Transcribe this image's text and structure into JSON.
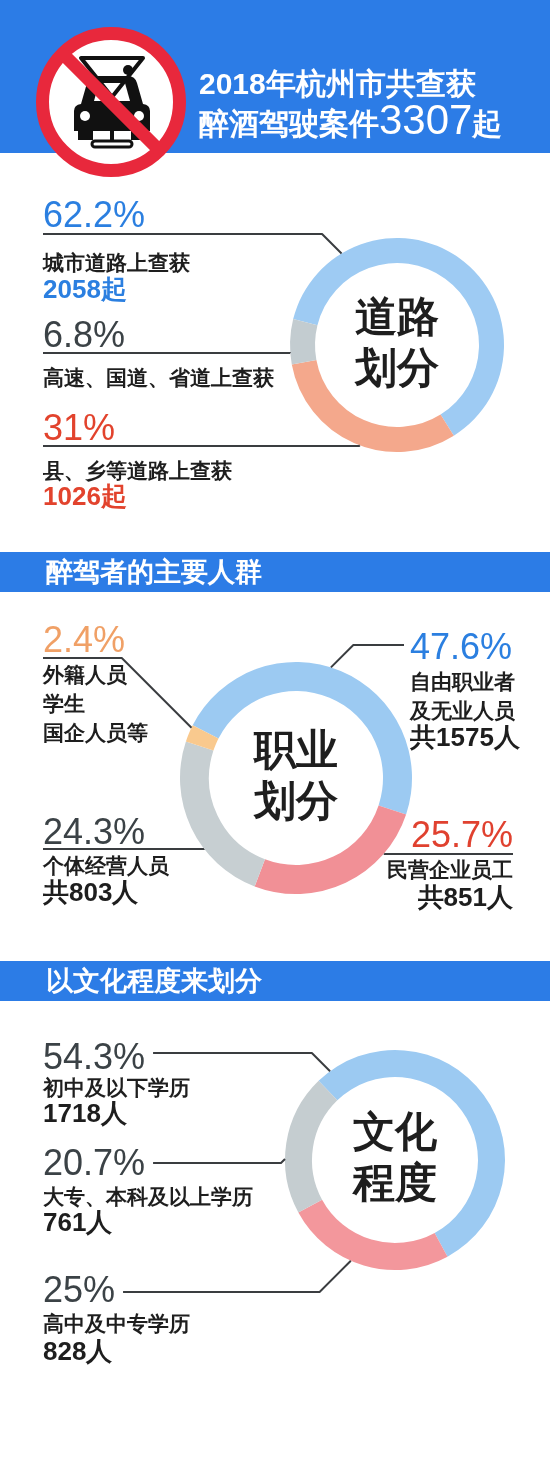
{
  "chart_data": [
    {
      "type": "donut",
      "title": "2018年杭州市共查获醉酒驾驶案件3307起",
      "subtitle": "道路划分",
      "categories": [
        "城市道路上查获",
        "县、乡等道路上查获",
        "高速、国道、省道上查获"
      ],
      "values": [
        62.2,
        31,
        6.8
      ],
      "colors": [
        "#9ecbf3",
        "#f4a88c",
        "#c3ccd0"
      ],
      "value_labels": [
        "62.2%",
        "31%",
        "6.8%"
      ],
      "annotations": [
        {
          "text": "2058起",
          "x": "城市道路上查获"
        },
        {
          "text": "1026起",
          "x": "县、乡等道路上查获"
        }
      ]
    },
    {
      "type": "donut",
      "title": "醉驾者的主要人群",
      "subtitle": "职业划分",
      "categories": [
        "自由职业者及无业人员",
        "民营企业员工",
        "个体经营人员",
        "外籍人员学生国企人员等"
      ],
      "values": [
        47.6,
        25.7,
        24.3,
        2.4
      ],
      "colors": [
        "#9ccaf2",
        "#f19096",
        "#c7cfd2",
        "#f9c98e"
      ],
      "value_labels": [
        "47.6%",
        "25.7%",
        "24.3%",
        "2.4%"
      ],
      "annotations": [
        {
          "text": "共1575人",
          "x": "自由职业者及无业人员"
        },
        {
          "text": "共851人",
          "x": "民营企业员工"
        },
        {
          "text": "共803人",
          "x": "个体经营人员"
        }
      ]
    },
    {
      "type": "donut",
      "title": "以文化程度来划分",
      "subtitle": "文化程度",
      "categories": [
        "初中及以下学历",
        "高中及中专学历",
        "大专、本科及以上学历"
      ],
      "values": [
        54.3,
        25,
        20.7
      ],
      "colors": [
        "#9ccaf2",
        "#f3979c",
        "#c5cdd0"
      ],
      "value_labels": [
        "54.3%",
        "25%",
        "20.7%"
      ],
      "annotations": [
        {
          "text": "1718人",
          "x": "初中及以下学历"
        },
        {
          "text": "828人",
          "x": "高中及中专学历"
        },
        {
          "text": "761人",
          "x": "大专、本科及以上学历"
        }
      ]
    }
  ]
}
